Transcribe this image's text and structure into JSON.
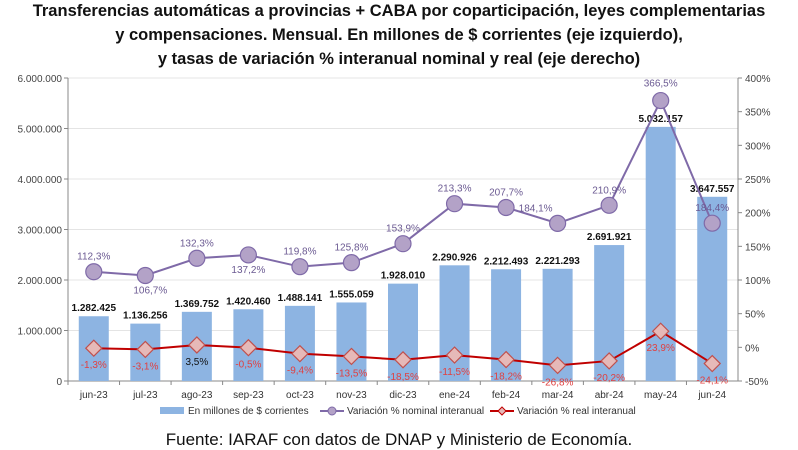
{
  "chart_data": {
    "type": "bar+line",
    "title": [
      "Transferencias automáticas a provincias + CABA por coparticipación, leyes complementarias",
      "y compensaciones. Mensual. En millones de $ corrientes (eje izquierdo),",
      "y tasas de variación % interanual nominal y real (eje derecho)"
    ],
    "categories": [
      "jun-23",
      "jul-23",
      "ago-23",
      "sep-23",
      "oct-23",
      "nov-23",
      "dic-23",
      "ene-24",
      "feb-24",
      "mar-24",
      "abr-24",
      "may-24",
      "jun-24"
    ],
    "series": [
      {
        "name": "En millones de $ corrientes",
        "axis": "left",
        "type": "bar",
        "color": "#8db4e2",
        "values": [
          1282425,
          1136256,
          1369752,
          1420460,
          1488141,
          1555059,
          1928010,
          2290926,
          2212493,
          2221293,
          2691921,
          5032157,
          3647557
        ],
        "labels": [
          "1.282.425",
          "1.136.256",
          "1.369.752",
          "1.420.460",
          "1.488.141",
          "1.555.059",
          "1.928.010",
          "2.290.926",
          "2.212.493",
          "2.221.293",
          "2.691.921",
          "5.032.157",
          "3.647.557"
        ]
      },
      {
        "name": "Variación % nominal interanual",
        "axis": "right",
        "type": "line",
        "color": "#7f6aa8",
        "values": [
          112.3,
          106.7,
          132.3,
          137.2,
          119.8,
          125.8,
          153.9,
          213.3,
          207.7,
          184.1,
          210.9,
          366.5,
          184.4
        ],
        "labels": [
          "112,3%",
          "106,7%",
          "132,3%",
          "137,2%",
          "119,8%",
          "125,8%",
          "153,9%",
          "213,3%",
          "207,7%",
          "184,1%",
          "210,9%",
          "366,5%",
          "184,4%"
        ]
      },
      {
        "name": "Variación % real interanual",
        "axis": "right",
        "type": "line",
        "color": "#c00000",
        "values": [
          -1.3,
          -3.1,
          3.5,
          -0.5,
          -9.4,
          -13.5,
          -18.5,
          -11.5,
          -18.2,
          -26.8,
          -20.2,
          23.9,
          -24.1
        ],
        "labels": [
          "-1,3%",
          "-3,1%",
          "3,5%",
          "-0,5%",
          "-9,4%",
          "-13,5%",
          "-18,5%",
          "-11,5%",
          "-18,2%",
          "-26,8%",
          "-20,2%",
          "23,9%",
          "-24,1%"
        ]
      }
    ],
    "left_axis": {
      "ylim": [
        0,
        6000000
      ],
      "ticks": [
        "0",
        "1.000.000",
        "2.000.000",
        "3.000.000",
        "4.000.000",
        "5.000.000",
        "6.000.000"
      ]
    },
    "right_axis": {
      "ylim": [
        -50,
        400
      ],
      "ticks": [
        "-50%",
        "0%",
        "50%",
        "100%",
        "150%",
        "200%",
        "250%",
        "300%",
        "350%",
        "400%"
      ]
    },
    "grid": true,
    "legend": "bottom"
  },
  "source": "Fuente: IARAF con datos de DNAP y Ministerio de Economía."
}
